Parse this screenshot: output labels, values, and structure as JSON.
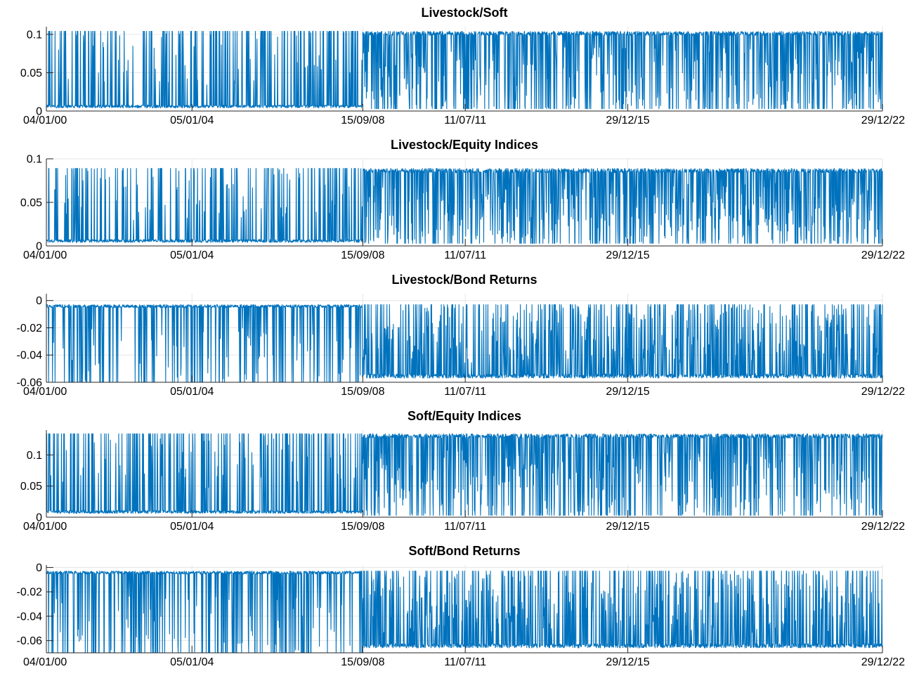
{
  "figure": {
    "background": "#ffffff",
    "line_color": "#0072BD",
    "grid_color": "#e6e6e6",
    "axis_color": "#262626"
  },
  "chart_data": [
    {
      "type": "line",
      "title": "Livestock/Soft",
      "xlabel": "",
      "ylabel": "",
      "x_range": [
        "04/01/00",
        "29/12/22"
      ],
      "x_tick_labels": [
        "04/01/00",
        "05/01/04",
        "15/09/08",
        "11/07/11",
        "29/12/15",
        "29/12/22"
      ],
      "ylim": [
        0,
        0.11
      ],
      "y_ticks": [
        0,
        0.05,
        0.1
      ],
      "y_tick_labels": [
        "0",
        "0.05",
        "0.1"
      ],
      "grid": true,
      "series": [
        {
          "regimes": [
            {
              "from": "04/01/00",
              "to": "15/09/08",
              "typical": 0.004,
              "spike_to": 0.104
            },
            {
              "from": "15/09/08",
              "to": "29/12/22",
              "typical": 0.104,
              "dip_to": 0.003
            }
          ]
        }
      ]
    },
    {
      "type": "line",
      "title": "Livestock/Equity Indices",
      "xlabel": "",
      "ylabel": "",
      "x_range": [
        "04/01/00",
        "29/12/22"
      ],
      "x_tick_labels": [
        "04/01/00",
        "05/01/04",
        "15/09/08",
        "11/07/11",
        "29/12/15",
        "29/12/22"
      ],
      "ylim": [
        0,
        0.1
      ],
      "y_ticks": [
        0,
        0.05,
        0.1
      ],
      "y_tick_labels": [
        "0",
        "0.05",
        "0.1"
      ],
      "grid": true,
      "series": [
        {
          "regimes": [
            {
              "from": "04/01/00",
              "to": "15/09/08",
              "typical": 0.004,
              "spike_to": 0.089
            },
            {
              "from": "15/09/08",
              "to": "29/12/22",
              "typical": 0.089,
              "dip_to": 0.003
            }
          ]
        }
      ]
    },
    {
      "type": "line",
      "title": "Livestock/Bond Returns",
      "xlabel": "",
      "ylabel": "",
      "x_range": [
        "04/01/00",
        "29/12/22"
      ],
      "x_tick_labels": [
        "04/01/00",
        "05/01/04",
        "15/09/08",
        "11/07/11",
        "29/12/15",
        "29/12/22"
      ],
      "ylim": [
        -0.06,
        0.005
      ],
      "y_ticks": [
        -0.06,
        -0.04,
        -0.02,
        0
      ],
      "y_tick_labels": [
        "-0.06",
        "-0.04",
        "-0.02",
        "0"
      ],
      "grid": true,
      "series": [
        {
          "regimes": [
            {
              "from": "04/01/00",
              "to": "15/09/08",
              "typical": -0.003,
              "spike_to": -0.06
            },
            {
              "from": "15/09/08",
              "to": "29/12/22",
              "typical": -0.057,
              "dip_to": -0.003
            }
          ]
        }
      ]
    },
    {
      "type": "line",
      "title": "Soft/Equity Indices",
      "xlabel": "",
      "ylabel": "",
      "x_range": [
        "04/01/00",
        "29/12/22"
      ],
      "x_tick_labels": [
        "04/01/00",
        "05/01/04",
        "15/09/08",
        "11/07/11",
        "29/12/15",
        "29/12/22"
      ],
      "ylim": [
        0,
        0.14
      ],
      "y_ticks": [
        0,
        0.05,
        0.1
      ],
      "y_tick_labels": [
        "0",
        "0.05",
        "0.1"
      ],
      "grid": true,
      "series": [
        {
          "regimes": [
            {
              "from": "04/01/00",
              "to": "15/09/08",
              "typical": 0.006,
              "spike_to": 0.134
            },
            {
              "from": "15/09/08",
              "to": "29/12/22",
              "typical": 0.134,
              "dip_to": 0.003
            }
          ]
        }
      ]
    },
    {
      "type": "line",
      "title": "Soft/Bond Returns",
      "xlabel": "",
      "ylabel": "",
      "x_range": [
        "04/01/00",
        "29/12/22"
      ],
      "x_tick_labels": [
        "04/01/00",
        "05/01/04",
        "15/09/08",
        "11/07/11",
        "29/12/15",
        "29/12/22"
      ],
      "ylim": [
        -0.07,
        0.002
      ],
      "y_ticks": [
        -0.06,
        -0.04,
        -0.02,
        0
      ],
      "y_tick_labels": [
        "-0.06",
        "-0.04",
        "-0.02",
        "0"
      ],
      "grid": true,
      "series": [
        {
          "regimes": [
            {
              "from": "04/01/00",
              "to": "15/09/08",
              "typical": -0.003,
              "spike_to": -0.07
            },
            {
              "from": "15/09/08",
              "to": "29/12/22",
              "typical": -0.066,
              "dip_to": -0.003
            }
          ]
        }
      ]
    }
  ]
}
